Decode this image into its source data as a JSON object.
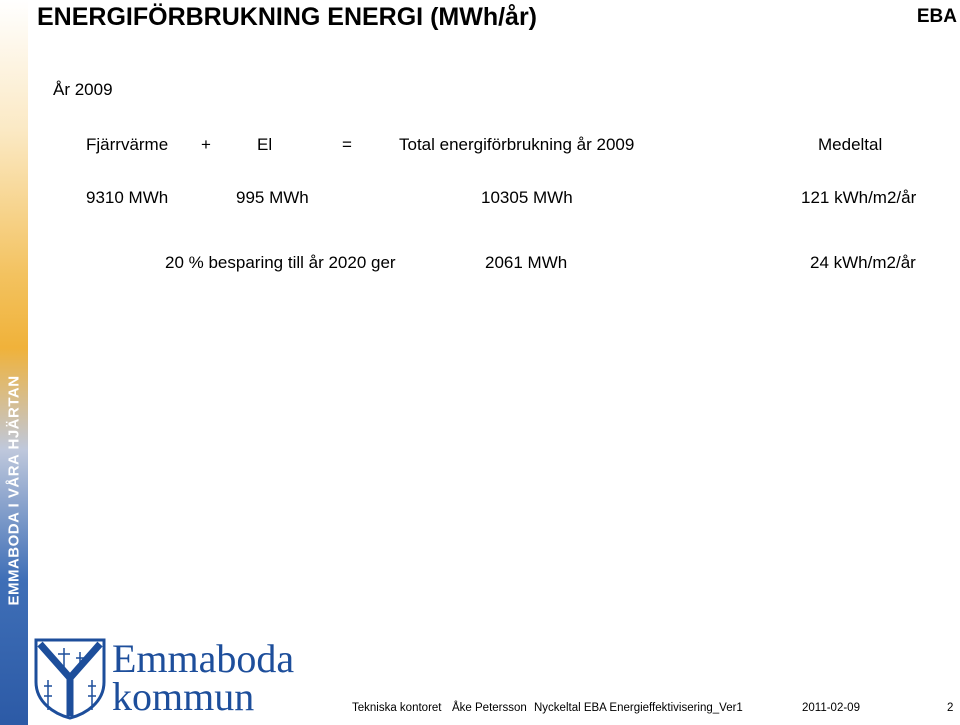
{
  "slide": {
    "title": "ENERGIFÖRBRUKNING ENERGI (MWh/år)",
    "tag": "EBA",
    "sidebar_text": "EMMABODA I VÅRA HJÄRTAN",
    "year_label": "År 2009",
    "header_row": {
      "col1": "Fjärrvärme",
      "plus": "+",
      "col2": "El",
      "eq": "=",
      "col3": "Total energiförbrukning år 2009",
      "col4": "Medeltal"
    },
    "values_row": {
      "col1": "9310 MWh",
      "col2": "995 MWh",
      "col3": "10305 MWh",
      "col4": "121 kWh/m2/år"
    },
    "savings_row": {
      "label": "20 % besparing till år 2020 ger",
      "value": "2061 MWh",
      "per_area": "24 kWh/m2/år"
    },
    "logo": {
      "line1": "Emmaboda",
      "line2": "kommun"
    },
    "footer": {
      "dept": "Tekniska kontoret",
      "author": "Åke Petersson",
      "doc": "Nyckeltal EBA Energieffektivisering_Ver1",
      "date": "2011-02-09",
      "page": "2"
    }
  }
}
